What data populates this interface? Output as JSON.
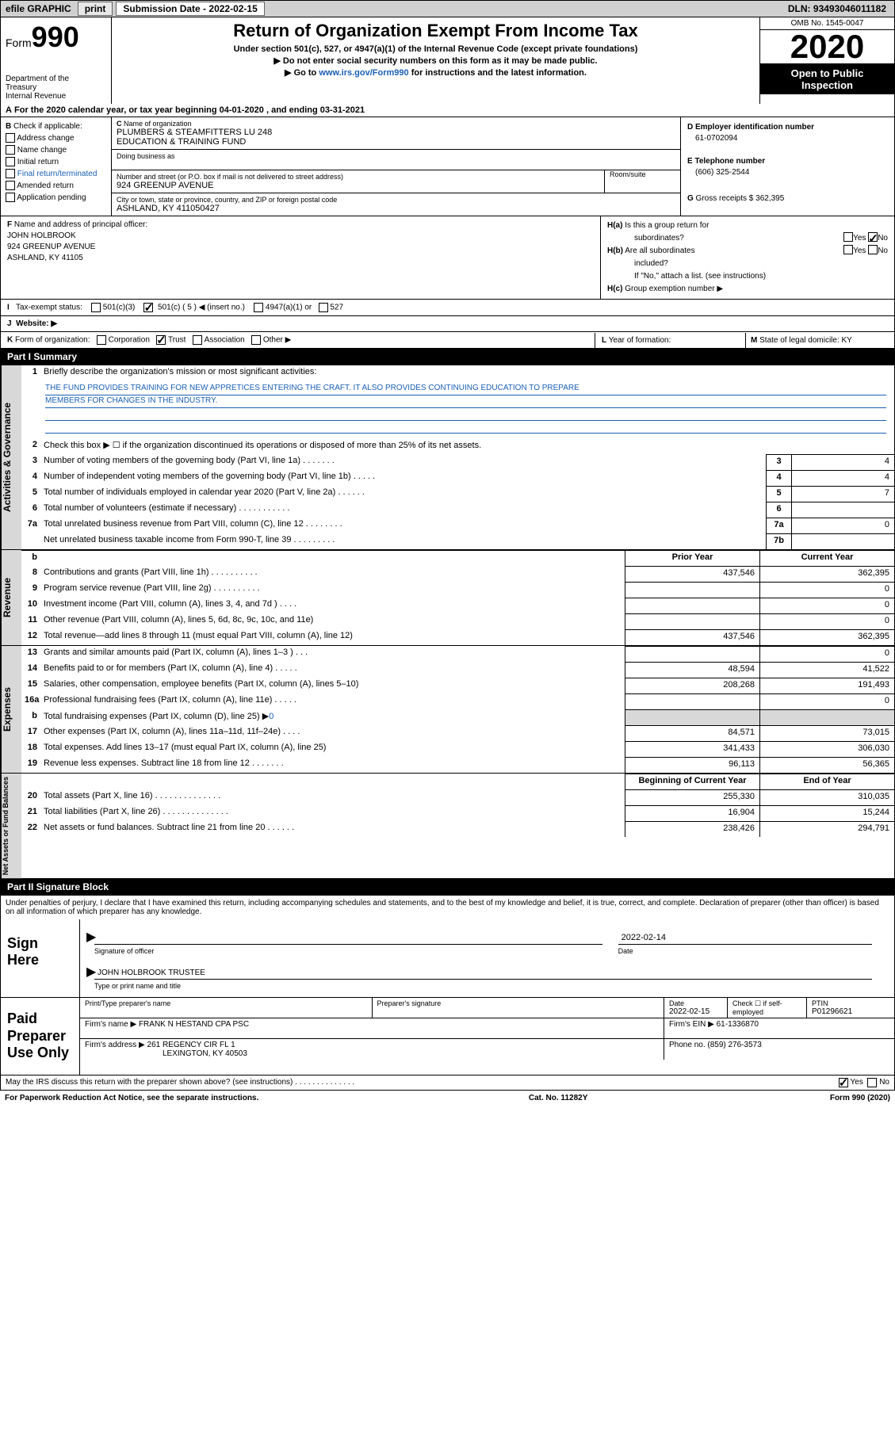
{
  "topbar": {
    "efile": "efile GRAPHIC",
    "print": "print",
    "submission_label": "Submission Date - ",
    "submission_date": "2022-02-15",
    "dln_label": "DLN: ",
    "dln": "93493046011182"
  },
  "header": {
    "form_word": "Form",
    "form_number": "990",
    "dept1": "Department of the",
    "dept2": "Treasury",
    "dept3": "Internal Revenue",
    "title": "Return of Organization Exempt From Income Tax",
    "subtitle1": "Under section 501(c), 527, or 4947(a)(1) of the Internal Revenue Code (except private foundations)",
    "subtitle2": "▶ Do not enter social security numbers on this form as it may be made public.",
    "subtitle3_pre": "▶ Go to ",
    "subtitle3_link": "www.irs.gov/Form990",
    "subtitle3_post": " for instructions and the latest information.",
    "omb": "OMB No. 1545-0047",
    "year": "2020",
    "open1": "Open to Public",
    "open2": "Inspection"
  },
  "period": {
    "label_a": "A",
    "text_pre": "For the 2020 calendar year, or tax year beginning ",
    "begin": "04-01-2020",
    "text_mid": " , and ending ",
    "end": "03-31-2021"
  },
  "block_b": {
    "b_label": "B",
    "b_intro": " Check if applicable:",
    "addr_change": "Address change",
    "name_change": "Name change",
    "initial": "Initial return",
    "final": "Final return/terminated",
    "amended": "Amended return",
    "app_pending": "Application pending",
    "c_label": "C",
    "c_name_label": "Name of organization",
    "org_name1": "PLUMBERS & STEAMFITTERS LU 248",
    "org_name2": "EDUCATION & TRAINING FUND",
    "dba_label": "Doing business as",
    "addr_label": "Number and street (or P.O. box if mail is not delivered to street address)",
    "room_label": "Room/suite",
    "street": "924 GREENUP AVENUE",
    "city_label": "City or town, state or province, country, and ZIP or foreign postal code",
    "city": "ASHLAND, KY  411050427",
    "d_label": "D Employer identification number",
    "ein": "61-0702094",
    "e_label": "E Telephone number",
    "phone": "(606) 325-2544",
    "g_label": "G",
    "g_text": " Gross receipts $ ",
    "gross": "362,395"
  },
  "block_f": {
    "f_label": "F",
    "f_text": " Name and address of principal officer:",
    "officer_name": "JOHN HOLBROOK",
    "officer_addr1": "924 GREENUP AVENUE",
    "officer_addr2": "ASHLAND, KY  41105",
    "ha_label": "H(a)",
    "ha_text": "  Is this a group return for",
    "ha_text2": "subordinates?",
    "hb_label": "H(b)",
    "hb_text": "  Are all subordinates",
    "hb_text2": "included?",
    "hb_note": "If \"No,\" attach a list. (see instructions)",
    "hc_label": "H(c)",
    "hc_text": "  Group exemption number ▶",
    "yes": "Yes",
    "no": "No"
  },
  "row_i": {
    "label": "I",
    "text": "Tax-exempt status:",
    "c3": "501(c)(3)",
    "c_pre": "501(c) ( ",
    "c_num": "5",
    "c_post": " ) ◀ (insert no.)",
    "a4947": "4947(a)(1) or",
    "s527": "527"
  },
  "row_j": {
    "label": "J",
    "text": "Website: ▶"
  },
  "row_k": {
    "label": "K",
    "text": " Form of organization:",
    "corp": "Corporation",
    "trust": "Trust",
    "assoc": "Association",
    "other": "Other ▶",
    "l_label": "L",
    "l_text": " Year of formation:",
    "m_label": "M",
    "m_text": " State of legal domicile: ",
    "state": "KY"
  },
  "part1": {
    "header": "Part I      Summary",
    "line1_label": "1",
    "line1_text": "Briefly describe the organization's mission or most significant activities:",
    "mission1": "THE FUND PROVIDES TRAINING FOR NEW APPRETICES ENTERING THE CRAFT. IT ALSO PROVIDES CONTINUING EDUCATION TO PREPARE",
    "mission2": "MEMBERS FOR CHANGES IN THE INDUSTRY.",
    "line2_label": "2",
    "line2_text": "Check this box ▶ ☐  if the organization discontinued its operations or disposed of more than 25% of its net assets.",
    "sidelabel1": "Activities & Governance",
    "sidelabel2": "Revenue",
    "sidelabel3": "Expenses",
    "sidelabel4": "Net Assets or Fund Balances",
    "prior_year": "Prior Year",
    "current_year": "Current Year",
    "begin_year": "Beginning of Current Year",
    "end_year": "End of Year",
    "rows_gov": [
      {
        "n": "3",
        "d": "Number of voting members of the governing body (Part VI, line 1a)   .    .    .    .    .    .    .",
        "b": "3",
        "v": "4"
      },
      {
        "n": "4",
        "d": "Number of independent voting members of the governing body (Part VI, line 1b)   .    .    .    .    .",
        "b": "4",
        "v": "4"
      },
      {
        "n": "5",
        "d": "Total number of individuals employed in calendar year 2020 (Part V, line 2a)   .    .    .    .    .    .",
        "b": "5",
        "v": "7"
      },
      {
        "n": "6",
        "d": "Total number of volunteers (estimate if necessary)   .    .    .    .    .    .    .    .    .    .    .",
        "b": "6",
        "v": ""
      },
      {
        "n": "7a",
        "d": "Total unrelated business revenue from Part VIII, column (C), line 12   .    .    .    .    .    .    .    .",
        "b": "7a",
        "v": "0"
      },
      {
        "n": "",
        "d": "Net unrelated business taxable income from Form 990-T, line 39   .    .    .    .    .    .    .    .    .",
        "b": "7b",
        "v": ""
      }
    ],
    "rows_rev": [
      {
        "n": "8",
        "d": "Contributions and grants (Part VIII, line 1h)    .    .    .    .    .    .    .    .    .    .",
        "p": "437,546",
        "c": "362,395"
      },
      {
        "n": "9",
        "d": "Program service revenue (Part VIII, line 2g)    .    .    .    .    .    .    .    .    .    .",
        "p": "",
        "c": "0"
      },
      {
        "n": "10",
        "d": "Investment income (Part VIII, column (A), lines 3, 4, and 7d )   .    .    .    .",
        "p": "",
        "c": "0"
      },
      {
        "n": "11",
        "d": "Other revenue (Part VIII, column (A), lines 5, 6d, 8c, 9c, 10c, and 11e)",
        "p": "",
        "c": "0"
      },
      {
        "n": "12",
        "d": "Total revenue—add lines 8 through 11 (must equal Part VIII, column (A), line 12)",
        "p": "437,546",
        "c": "362,395"
      }
    ],
    "rows_exp": [
      {
        "n": "13",
        "d": "Grants and similar amounts paid (Part IX, column (A), lines 1–3 )    .    .    .",
        "p": "",
        "c": "0"
      },
      {
        "n": "14",
        "d": "Benefits paid to or for members (Part IX, column (A), line 4)    .    .    .    .    .",
        "p": "48,594",
        "c": "41,522"
      },
      {
        "n": "15",
        "d": "Salaries, other compensation, employee benefits (Part IX, column (A), lines 5–10)",
        "p": "208,268",
        "c": "191,493"
      },
      {
        "n": "16a",
        "d": "Professional fundraising fees (Part IX, column (A), line 11e)    .    .    .    .    .",
        "p": "",
        "c": "0"
      },
      {
        "n": "b",
        "d": "Total fundraising expenses (Part IX, column (D), line 25) ▶0",
        "p": "GRAY",
        "c": "GRAY",
        "link": true
      },
      {
        "n": "17",
        "d": "Other expenses (Part IX, column (A), lines 11a–11d, 11f–24e)    .    .    .    .",
        "p": "84,571",
        "c": "73,015"
      },
      {
        "n": "18",
        "d": "Total expenses. Add lines 13–17 (must equal Part IX, column (A), line 25)",
        "p": "341,433",
        "c": "306,030"
      },
      {
        "n": "19",
        "d": "Revenue less expenses. Subtract line 18 from line 12   .    .    .    .    .    .    .",
        "p": "96,113",
        "c": "56,365"
      }
    ],
    "rows_net": [
      {
        "n": "20",
        "d": "Total assets (Part X, line 16)    .    .    .    .    .    .    .    .    .    .    .    .    .    .",
        "p": "255,330",
        "c": "310,035"
      },
      {
        "n": "21",
        "d": "Total liabilities (Part X, line 26)    .    .    .    .    .    .    .    .    .    .    .    .    .    .",
        "p": "16,904",
        "c": "15,244"
      },
      {
        "n": "22",
        "d": "Net assets or fund balances. Subtract line 21 from line 20   .    .    .    .    .    .",
        "p": "238,426",
        "c": "294,791"
      }
    ]
  },
  "part2": {
    "header": "Part II      Signature Block",
    "declare": "Under penalties of perjury, I declare that I have examined this return, including accompanying schedules and statements, and to the best of my knowledge and belief, it is true, correct, and complete. Declaration of preparer (other than officer) is based on all information of which preparer has any knowledge.",
    "sign_here": "Sign Here",
    "sig_officer": "Signature of officer",
    "sig_date": "Date",
    "sig_date_val": "2022-02-14",
    "officer_line": "JOHN HOLBROOK  TRUSTEE",
    "type_name": "Type or print name and title",
    "paid": "Paid Preparer Use Only",
    "pp_name_label": "Print/Type preparer's name",
    "pp_sig_label": "Preparer's signature",
    "pp_date_label": "Date",
    "pp_date": "2022-02-15",
    "pp_check_label": "Check ☐ if self-employed",
    "ptin_label": "PTIN",
    "ptin": "P01296621",
    "firm_name_label": "Firm's name      ▶ ",
    "firm_name": "FRANK N HESTAND CPA PSC",
    "firm_ein_label": "Firm's EIN ▶ ",
    "firm_ein": "61-1336870",
    "firm_addr_label": "Firm's address ▶ ",
    "firm_addr1": "261 REGENCY CIR FL 1",
    "firm_addr2": "LEXINGTON, KY  40503",
    "phone_label": "Phone no. ",
    "phone": "(859) 276-3573",
    "discuss": "May the IRS discuss this return with the preparer shown above? (see instructions)   .    .    .    .    .    .    .    .    .    .    .    .    .    .",
    "yes": "Yes",
    "no": "No"
  },
  "footer": {
    "pra": "For Paperwork Reduction Act Notice, see the separate instructions.",
    "cat": "Cat. No. 11282Y",
    "form": "Form 990 (2020)"
  }
}
